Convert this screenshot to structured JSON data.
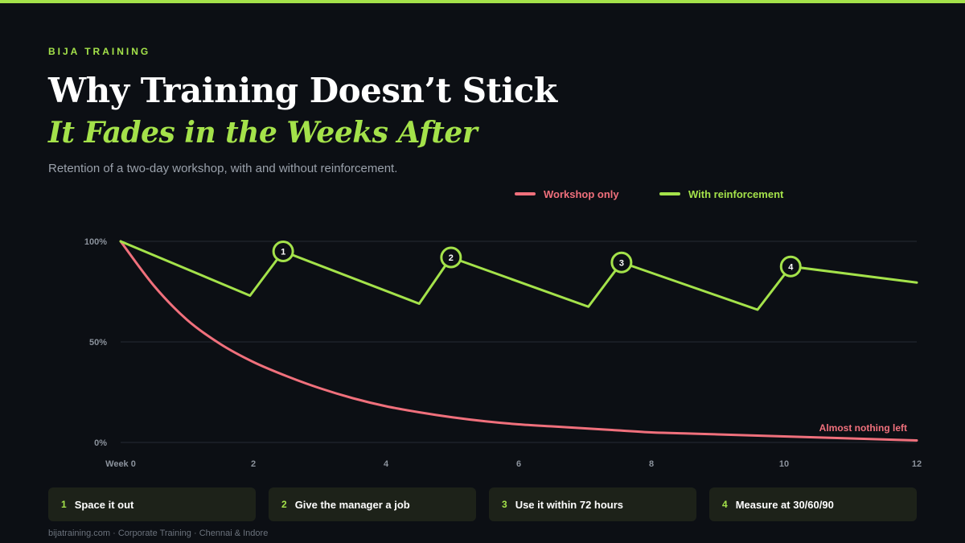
{
  "brand": "BIJA TRAINING",
  "title": "Why Training Doesn’t Stick",
  "subtitle": "It Fades in the Weeks After",
  "description": "Retention of a two-day workshop, with and without reinforcement.",
  "colors": {
    "accent": "#a4e24a",
    "workshop": "#f0707c",
    "background": "#0c0f14"
  },
  "chart_data": {
    "type": "line",
    "xlim": [
      0,
      12
    ],
    "ylim": [
      0,
      100
    ],
    "x_ticks": [
      {
        "value": 0,
        "label": "Week 0"
      },
      {
        "value": 2,
        "label": "2"
      },
      {
        "value": 4,
        "label": "4"
      },
      {
        "value": 6,
        "label": "6"
      },
      {
        "value": 8,
        "label": "8"
      },
      {
        "value": 10,
        "label": "10"
      },
      {
        "value": 12,
        "label": "12"
      }
    ],
    "y_ticks": [
      {
        "value": 0,
        "label": "0%"
      },
      {
        "value": 50,
        "label": "50%"
      },
      {
        "value": 100,
        "label": "100%"
      }
    ],
    "grid": true,
    "legend_position": "top-right",
    "series": [
      {
        "name": "Workshop only",
        "color": "#f0707c",
        "x": [
          0,
          0.5,
          1,
          1.5,
          2,
          2.5,
          3,
          3.5,
          4,
          4.5,
          5,
          5.5,
          6,
          6.5,
          7,
          7.5,
          8,
          8.5,
          9,
          9.5,
          10,
          10.5,
          11,
          11.5,
          12
        ],
        "y": [
          100,
          78,
          61,
          49,
          40,
          33,
          27,
          22,
          18,
          15,
          12.5,
          10.5,
          9,
          8,
          7,
          6,
          5,
          4.5,
          4,
          3.5,
          3,
          2.5,
          2,
          1.5,
          1
        ]
      },
      {
        "name": "With reinforcement",
        "color": "#a4e24a",
        "x": [
          0,
          1.95,
          2.45,
          4.5,
          4.98,
          7.05,
          7.55,
          9.6,
          10.1,
          12
        ],
        "y": [
          100,
          73,
          95,
          69,
          92,
          67.5,
          89.5,
          66,
          87.5,
          79.5
        ]
      }
    ],
    "markers": [
      {
        "x": 2.45,
        "y": 95,
        "label": "1"
      },
      {
        "x": 4.98,
        "y": 92,
        "label": "2"
      },
      {
        "x": 7.55,
        "y": 89.5,
        "label": "3"
      },
      {
        "x": 10.1,
        "y": 87.5,
        "label": "4"
      }
    ],
    "annotations": [
      {
        "text": "Almost nothing left",
        "x": 12,
        "y": 1,
        "series": "Workshop only"
      }
    ]
  },
  "steps": [
    {
      "num": "1",
      "label": "Space it out"
    },
    {
      "num": "2",
      "label": "Give the manager a job"
    },
    {
      "num": "3",
      "label": "Use it within 72 hours"
    },
    {
      "num": "4",
      "label": "Measure at 30/60/90"
    }
  ],
  "footer": "bijatraining.com · Corporate Training · Chennai & Indore"
}
